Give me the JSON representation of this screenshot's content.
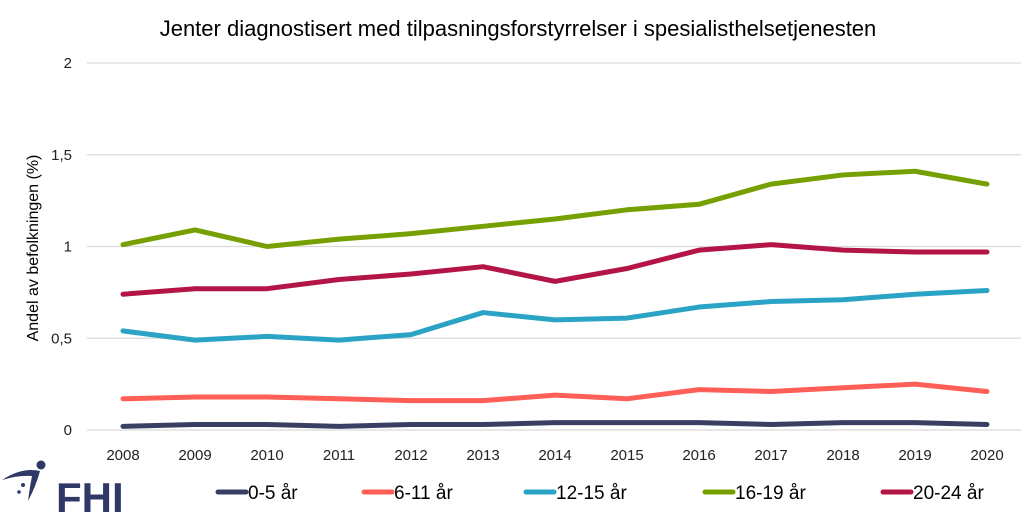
{
  "logo": {
    "text": "FHI",
    "color": "#2f3866"
  },
  "chart_data": {
    "type": "line",
    "title": "Jenter diagnostisert med tilpasningsforstyrrelser i spesialisthelsetjenesten",
    "xlabel": "",
    "ylabel": "Andel av befolkningen (%)",
    "ylim": [
      0,
      2
    ],
    "yticks": [
      0,
      0.5,
      1,
      1.5,
      2
    ],
    "ytick_labels": [
      "0",
      "0,5",
      "1",
      "1,5",
      "2"
    ],
    "grid": true,
    "legend_position": "bottom",
    "x": [
      "2008",
      "2009",
      "2010",
      "2011",
      "2012",
      "2013",
      "2014",
      "2015",
      "2016",
      "2017",
      "2018",
      "2019",
      "2020"
    ],
    "series": [
      {
        "name": "0-5 år",
        "color": "#393e63",
        "values": [
          0.02,
          0.03,
          0.03,
          0.02,
          0.03,
          0.03,
          0.04,
          0.04,
          0.04,
          0.03,
          0.04,
          0.04,
          0.03
        ]
      },
      {
        "name": "6-11 år",
        "color": "#ff5f56",
        "values": [
          0.17,
          0.18,
          0.18,
          0.17,
          0.16,
          0.16,
          0.19,
          0.17,
          0.22,
          0.21,
          0.23,
          0.25,
          0.21
        ]
      },
      {
        "name": "12-15 år",
        "color": "#2ba3c4",
        "values": [
          0.54,
          0.49,
          0.51,
          0.49,
          0.52,
          0.64,
          0.6,
          0.61,
          0.67,
          0.7,
          0.71,
          0.74,
          0.76
        ]
      },
      {
        "name": "16-19 år",
        "color": "#76a000",
        "values": [
          1.01,
          1.09,
          1.0,
          1.04,
          1.07,
          1.11,
          1.15,
          1.2,
          1.23,
          1.34,
          1.39,
          1.41,
          1.34
        ]
      },
      {
        "name": "20-24 år",
        "color": "#b31546",
        "values": [
          0.74,
          0.77,
          0.77,
          0.82,
          0.85,
          0.89,
          0.81,
          0.88,
          0.98,
          1.01,
          0.98,
          0.97,
          0.97
        ]
      }
    ]
  }
}
